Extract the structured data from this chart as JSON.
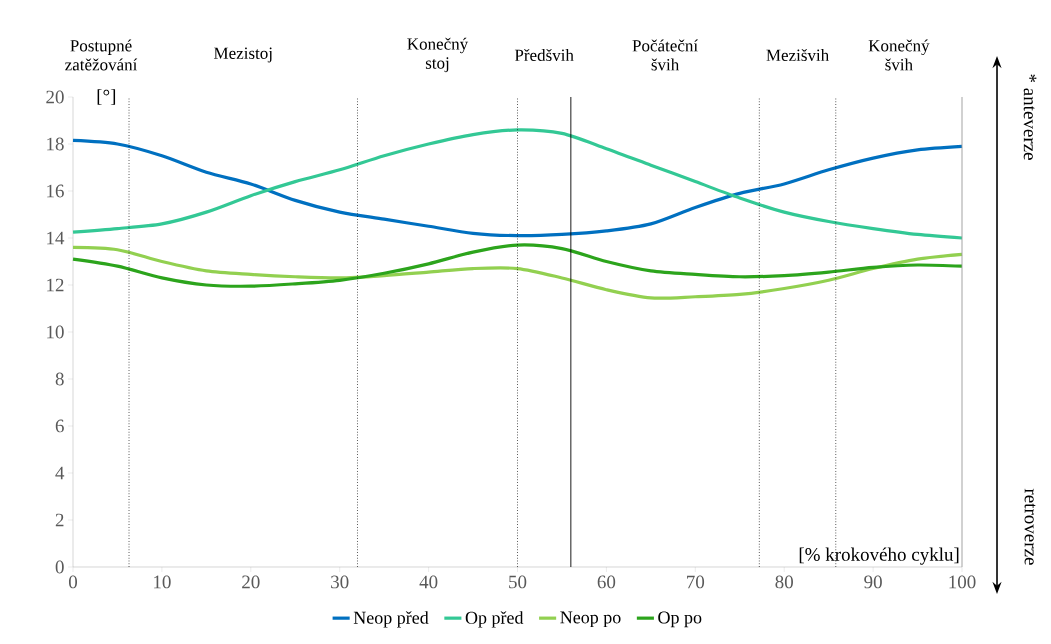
{
  "chart_data": {
    "type": "line",
    "xlabel": "[% krokového cyklu]",
    "ylabel": "[°]",
    "x": [
      0,
      5,
      10,
      15,
      20,
      25,
      30,
      35,
      40,
      45,
      50,
      55,
      60,
      65,
      70,
      75,
      80,
      85,
      90,
      95,
      100
    ],
    "series": [
      {
        "name": "Neop před",
        "color": "#0070c0",
        "values": [
          18.15,
          18.0,
          17.5,
          16.8,
          16.3,
          15.6,
          15.1,
          14.8,
          14.5,
          14.2,
          14.1,
          14.15,
          14.3,
          14.6,
          15.3,
          15.9,
          16.3,
          16.9,
          17.4,
          17.75,
          17.9
        ]
      },
      {
        "name": "Op před",
        "color": "#33c895",
        "values": [
          14.25,
          14.4,
          14.6,
          15.1,
          15.8,
          16.4,
          16.9,
          17.5,
          18.0,
          18.4,
          18.6,
          18.45,
          17.8,
          17.1,
          16.4,
          15.7,
          15.1,
          14.7,
          14.4,
          14.15,
          14.0
        ]
      },
      {
        "name": "Neop po",
        "color": "#92d050",
        "values": [
          13.6,
          13.5,
          13.0,
          12.6,
          12.45,
          12.35,
          12.3,
          12.4,
          12.55,
          12.7,
          12.7,
          12.3,
          11.8,
          11.45,
          11.5,
          11.6,
          11.85,
          12.2,
          12.7,
          13.1,
          13.3
        ]
      },
      {
        "name": "Op po",
        "color": "#2ca41c",
        "values": [
          13.1,
          12.8,
          12.3,
          12.0,
          11.95,
          12.05,
          12.2,
          12.5,
          12.9,
          13.4,
          13.7,
          13.55,
          13.0,
          12.6,
          12.45,
          12.35,
          12.4,
          12.55,
          12.75,
          12.85,
          12.8
        ]
      }
    ],
    "xlim": [
      0,
      100
    ],
    "ylim": [
      0,
      20
    ],
    "xticks": [
      0,
      10,
      20,
      30,
      40,
      50,
      60,
      70,
      80,
      90,
      100
    ],
    "yticks": [
      0,
      2,
      4,
      6,
      8,
      10,
      12,
      14,
      16,
      18,
      20
    ],
    "ref_lines": [
      {
        "axis": "x",
        "value": 6.3,
        "color": "#000000",
        "line_style": "dotted"
      },
      {
        "axis": "x",
        "value": 32,
        "color": "#000000",
        "line_style": "dotted"
      },
      {
        "axis": "x",
        "value": 50,
        "color": "#000000",
        "line_style": "dotted"
      },
      {
        "axis": "x",
        "value": 56,
        "color": "#000000",
        "line_style": "solid"
      },
      {
        "axis": "x",
        "value": 77.2,
        "color": "#000000",
        "line_style": "dotted"
      },
      {
        "axis": "x",
        "value": 85.8,
        "color": "#000000",
        "line_style": "dotted"
      }
    ],
    "annotations": [
      "Postupné zatěžování",
      "Mezistoj",
      "Konečný stoj",
      "Předšvih",
      "Počáteční švih",
      "Mezišvih",
      "Konečný švih",
      "* anteverze",
      "retroverze"
    ],
    "legend": "bottom",
    "grid": false,
    "marker": "none",
    "line_style": "solid"
  }
}
